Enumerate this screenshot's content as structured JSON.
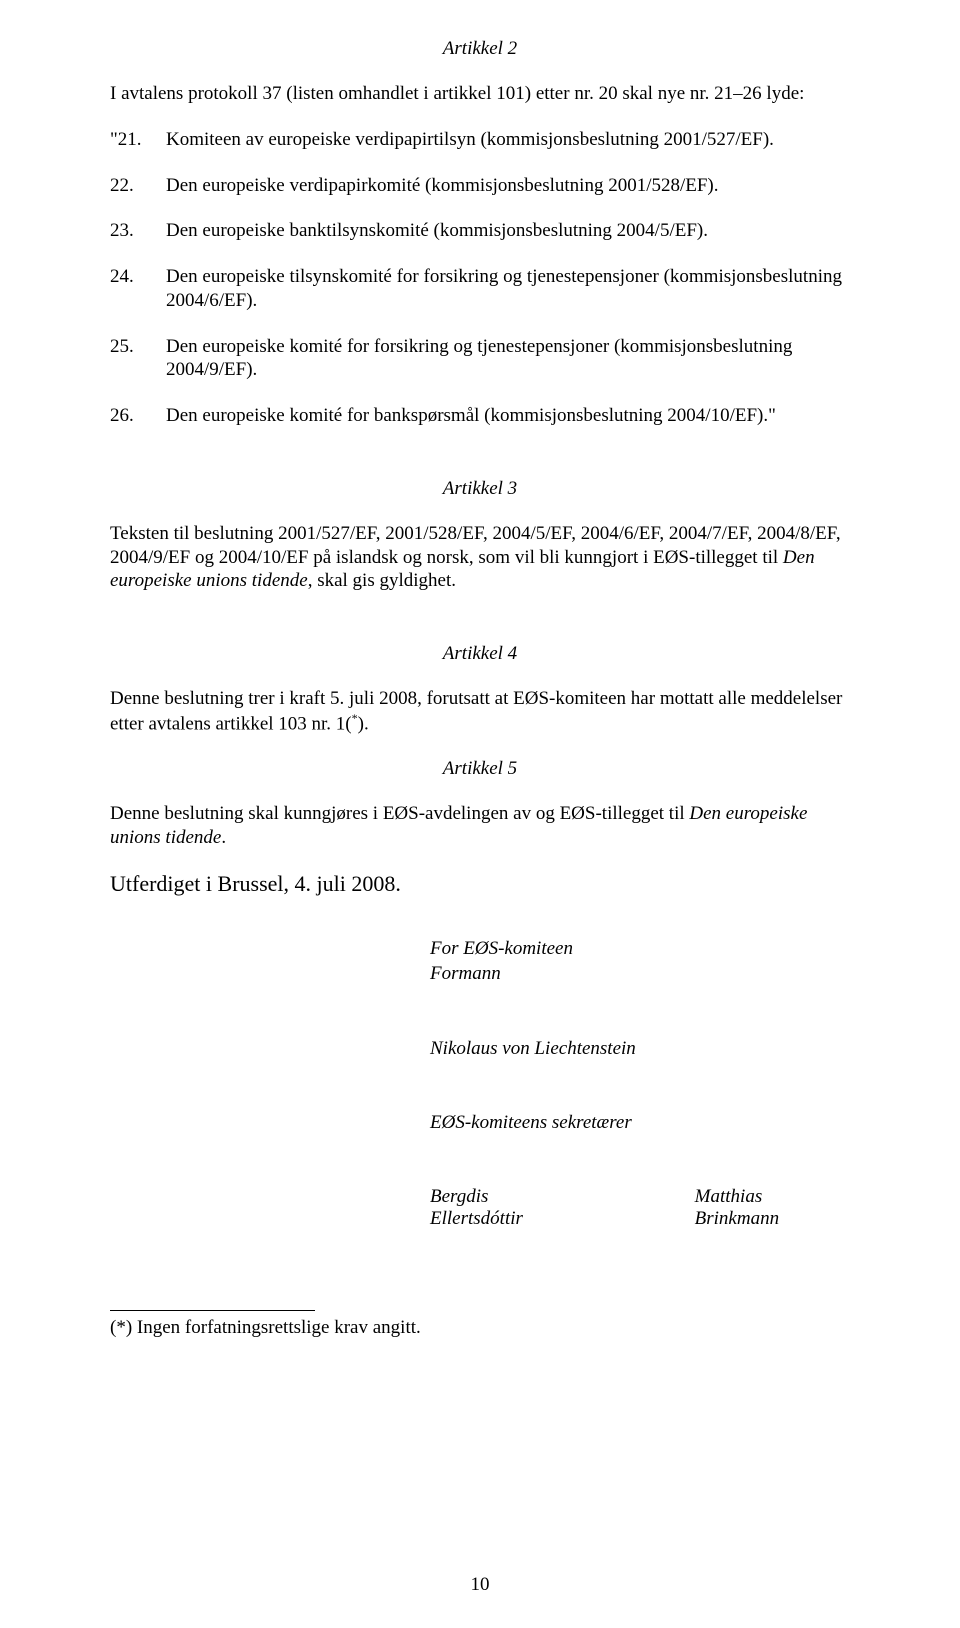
{
  "article2": {
    "heading": "Artikkel 2",
    "intro": "I avtalens protokoll 37 (listen omhandlet i artikkel 101) etter nr. 20 skal nye nr. 21–26 lyde:",
    "items": [
      {
        "num": "\"21.",
        "text": "Komiteen av europeiske verdipapirtilsyn (kommisjonsbeslutning 2001/527/EF)."
      },
      {
        "num": "22.",
        "text": "Den europeiske verdipapirkomité (kommisjonsbeslutning 2001/528/EF)."
      },
      {
        "num": "23.",
        "text": "Den europeiske banktilsynskomité (kommisjonsbeslutning 2004/5/EF)."
      },
      {
        "num": "24.",
        "text": "Den europeiske tilsynskomité for forsikring og tjenestepensjoner (kommisjonsbeslutning 2004/6/EF)."
      },
      {
        "num": "25.",
        "text": "Den europeiske komité for forsikring og tjenestepensjoner (kommisjonsbeslutning 2004/9/EF)."
      },
      {
        "num": "26.",
        "text": "Den europeiske komité for bankspørsmål (kommisjonsbeslutning 2004/10/EF).\""
      }
    ]
  },
  "article3": {
    "heading": "Artikkel 3",
    "para_pre": "Teksten til beslutning 2001/527/EF, 2001/528/EF, 2004/5/EF, 2004/6/EF, 2004/7/EF, 2004/8/EF, 2004/9/EF og 2004/10/EF på islandsk og norsk, som vil bli kunngjort i EØS-tillegget til ",
    "para_italic": "Den europeiske unions tidende",
    "para_post": ", skal gis gyldighet."
  },
  "article4": {
    "heading": "Artikkel 4",
    "para_pre": "Denne beslutning trer i kraft 5. juli 2008, forutsatt at EØS-komiteen har mottatt alle meddelelser etter avtalens artikkel 103 nr. 1(",
    "sup": "*",
    "para_post": ")."
  },
  "article5": {
    "heading": "Artikkel 5",
    "para_pre": "Denne beslutning skal kunngjøres i EØS-avdelingen av og EØS-tillegget til ",
    "para_italic": "Den europeiske unions tidende",
    "para_post": "."
  },
  "closing": "Utferdiget i Brussel, 4. juli 2008.",
  "signature": {
    "for_line": "For EØS-komiteen",
    "role": "Formann",
    "name": "Nikolaus von Liechtenstein",
    "secretaries_label": "EØS-komiteens sekretærer",
    "sec1": "Bergdis Ellertsdóttir",
    "sec2": "Matthias Brinkmann"
  },
  "footnote": "(*) Ingen forfatningsrettslige krav angitt.",
  "page_number": "10"
}
